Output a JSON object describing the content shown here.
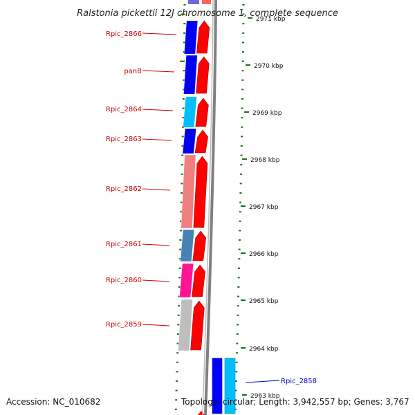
{
  "title": "Ralstonia pickettii 12J chromosome 1, complete sequence",
  "footer": {
    "accession": "Accession: NC_010682",
    "topology": "Topology: circular; Length: 3,942,557 bp; Genes: 3,767"
  },
  "colors": {
    "label_red": "#cc0000",
    "label_blue": "#0000cc",
    "tick": "#1a6e1a",
    "backbone": "#808080",
    "orf_red": "#ff0000",
    "orf_blue": "#0000ff",
    "orf_cyan": "#00bfff"
  },
  "kbp_labels": [
    "2971 kbp",
    "2970 kbp",
    "2969 kbp",
    "2968 kbp",
    "2967 kbp",
    "2966 kbp",
    "2965 kbp",
    "2964 kbp",
    "2963 kbp"
  ],
  "genes": [
    {
      "name": "Rpic_2866",
      "color": "#0000ee",
      "label_color": "#cc0000"
    },
    {
      "name": "panB",
      "color": "#0000ee",
      "label_color": "#cc0000"
    },
    {
      "name": "Rpic_2864",
      "color": "#00bfff",
      "label_color": "#cc0000"
    },
    {
      "name": "Rpic_2863",
      "color": "#0000ee",
      "label_color": "#cc0000"
    },
    {
      "name": "Rpic_2862",
      "color": "#f08080",
      "label_color": "#cc0000"
    },
    {
      "name": "Rpic_2861",
      "color": "#4682b4",
      "label_color": "#cc0000"
    },
    {
      "name": "Rpic_2860",
      "color": "#ff1493",
      "label_color": "#cc0000"
    },
    {
      "name": "Rpic_2859",
      "color": "#bebebe",
      "label_color": "#cc0000"
    },
    {
      "name": "Rpic_2858",
      "color": "#0000ee",
      "label_color": "#0000cc"
    }
  ]
}
